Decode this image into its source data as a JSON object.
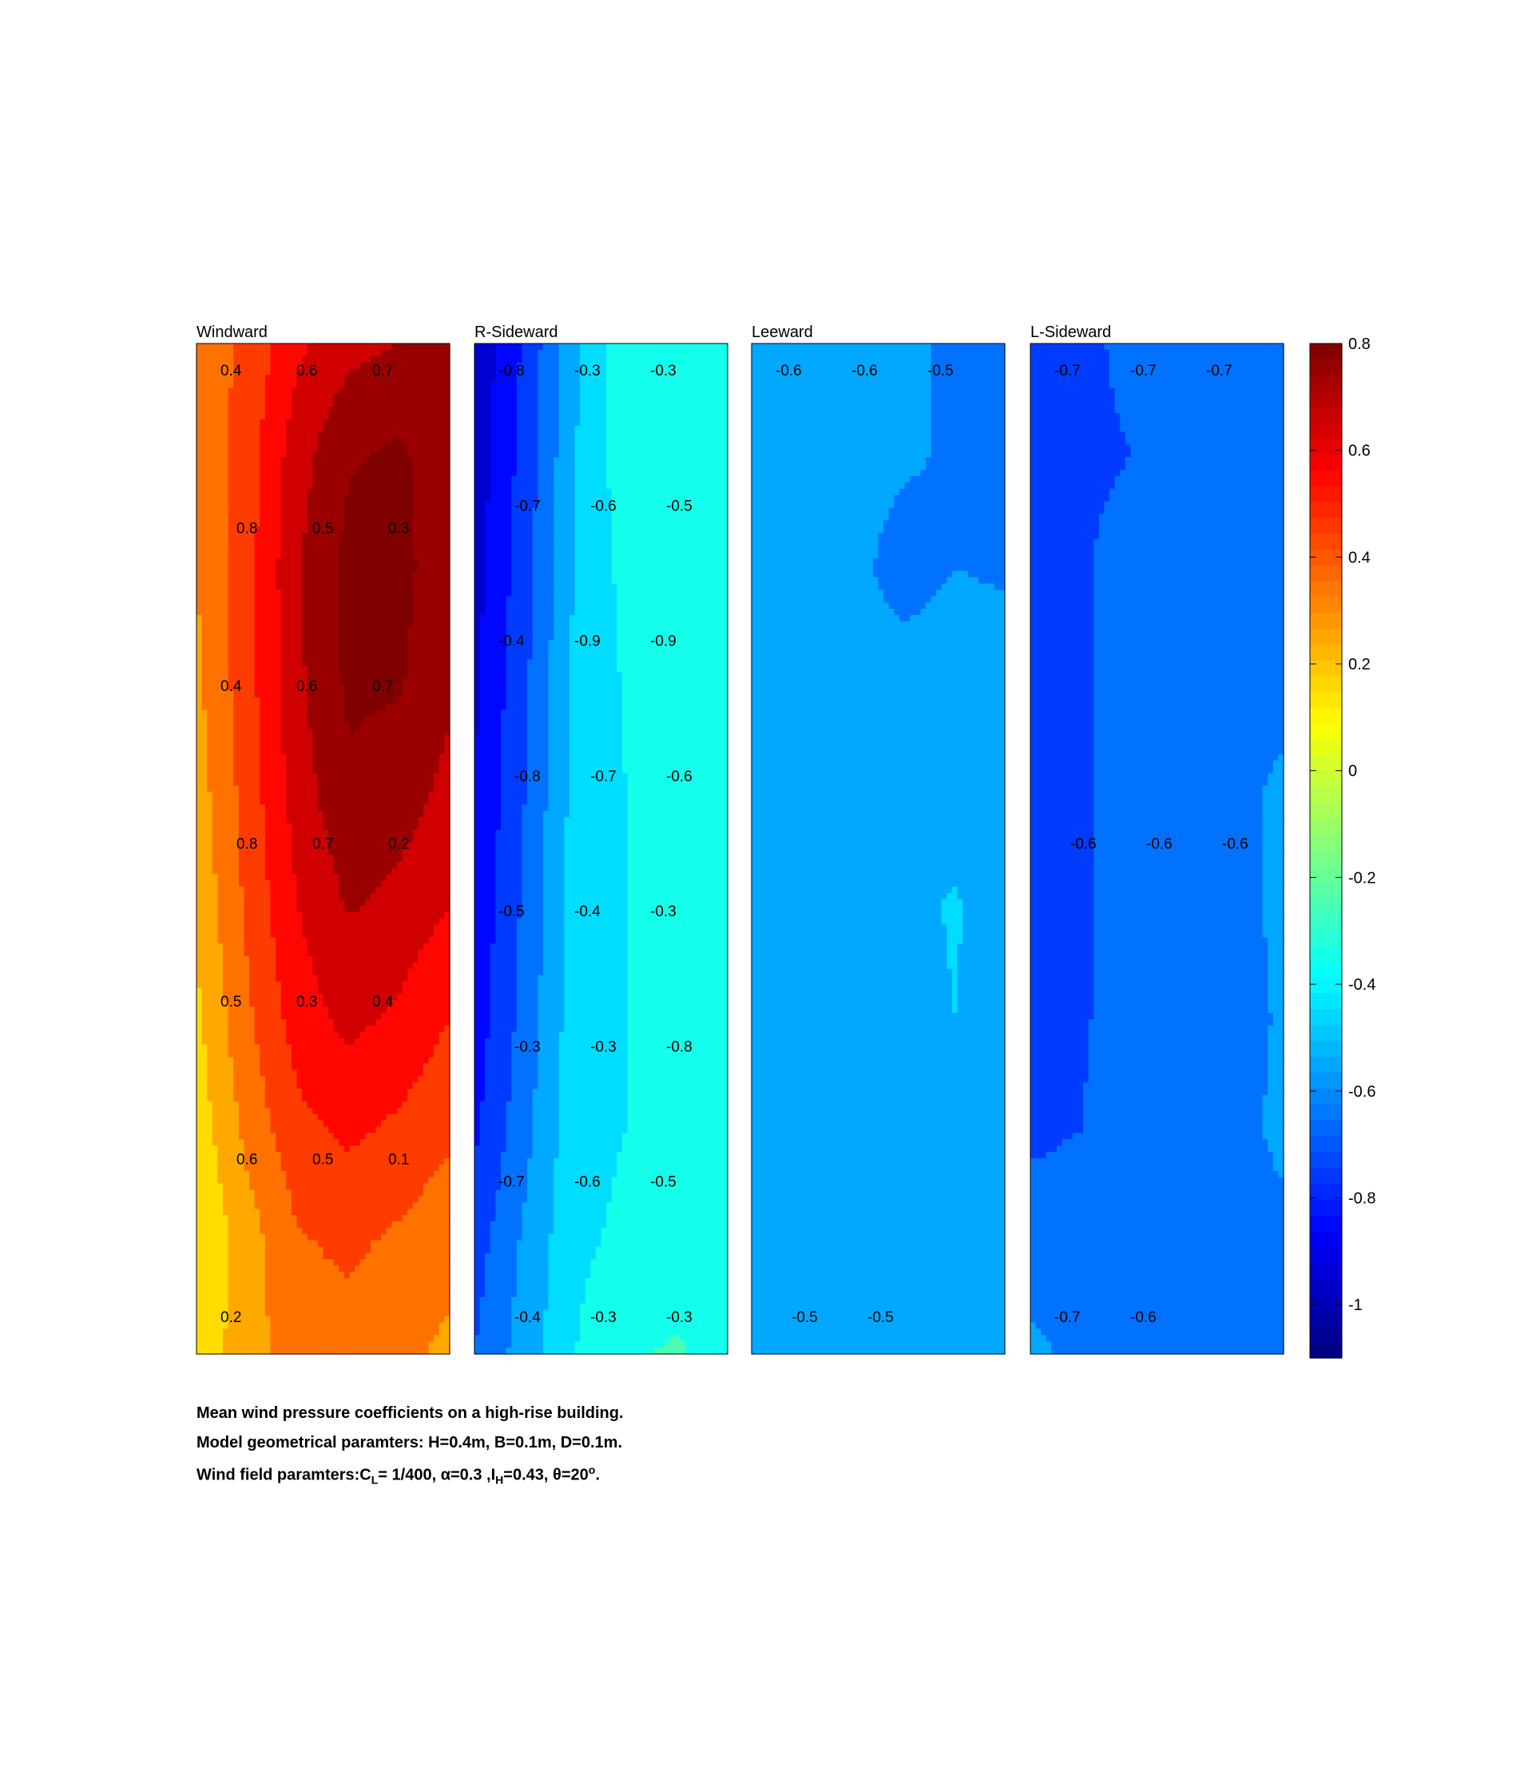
{
  "chart_data": {
    "type": "heatmap",
    "description_note": "",
    "panels": [
      {
        "title": "Windward",
        "contour_labels": [
          "0.4",
          "0.6",
          "0.7",
          "0.8",
          "0.5",
          "0.3",
          "0.4",
          "0.6",
          "0.7",
          "0.8",
          "0.7",
          "0.2",
          "0.5",
          "0.3",
          "0.4",
          "0.6",
          "0.5",
          "0.1",
          "0.2"
        ],
        "grid": [
          [
            0.34,
            0.42,
            0.58,
            0.67,
            0.7,
            0.72
          ],
          [
            0.32,
            0.45,
            0.66,
            0.79,
            0.82,
            0.73
          ],
          [
            0.3,
            0.46,
            0.69,
            0.83,
            0.83,
            0.74
          ],
          [
            0.28,
            0.46,
            0.68,
            0.82,
            0.81,
            0.72
          ],
          [
            0.25,
            0.44,
            0.65,
            0.78,
            0.75,
            0.67
          ],
          [
            0.22,
            0.42,
            0.6,
            0.71,
            0.67,
            0.6
          ],
          [
            0.18,
            0.38,
            0.55,
            0.63,
            0.58,
            0.5
          ],
          [
            0.14,
            0.33,
            0.47,
            0.52,
            0.48,
            0.42
          ],
          [
            0.1,
            0.25,
            0.39,
            0.42,
            0.38,
            0.33
          ],
          [
            0.13,
            0.26,
            0.35,
            0.36,
            0.32,
            0.28
          ]
        ]
      },
      {
        "title": "R-Sideward",
        "contour_labels": [
          "-0.8",
          "-0.3",
          "-0.3",
          "-0.7",
          "-0.6",
          "-0.5",
          "-0.4",
          "-0.9",
          "-0.9",
          "-0.8",
          "-0.7",
          "-0.6",
          "-0.5",
          "-0.4",
          "-0.3",
          "-0.3",
          "-0.3",
          "-0.8",
          "-0.7",
          "-0.6",
          "-0.5",
          "-0.4",
          "-0.3",
          "-0.3"
        ],
        "grid": [
          [
            -0.98,
            -0.78,
            -0.52,
            -0.33,
            -0.3,
            -0.32
          ],
          [
            -0.96,
            -0.76,
            -0.5,
            -0.34,
            -0.31,
            -0.33
          ],
          [
            -0.94,
            -0.74,
            -0.49,
            -0.37,
            -0.33,
            -0.36
          ],
          [
            -0.92,
            -0.72,
            -0.47,
            -0.39,
            -0.35,
            -0.38
          ],
          [
            -0.9,
            -0.7,
            -0.46,
            -0.4,
            -0.32,
            -0.39
          ],
          [
            -0.88,
            -0.68,
            -0.45,
            -0.4,
            -0.31,
            -0.39
          ],
          [
            -0.86,
            -0.66,
            -0.44,
            -0.4,
            -0.34,
            -0.39
          ],
          [
            -0.82,
            -0.63,
            -0.43,
            -0.4,
            -0.33,
            -0.39
          ],
          [
            -0.75,
            -0.58,
            -0.42,
            -0.38,
            -0.34,
            -0.38
          ],
          [
            -0.7,
            -0.55,
            -0.4,
            -0.31,
            -0.29,
            -0.34
          ]
        ]
      },
      {
        "title": "Leeward",
        "contour_labels": [
          "-0.6",
          "-0.6",
          "-0.5",
          "-0.5",
          "-0.5"
        ],
        "grid": [
          [
            -0.55,
            -0.55,
            -0.56,
            -0.58,
            -0.62,
            -0.63
          ],
          [
            -0.55,
            -0.56,
            -0.57,
            -0.59,
            -0.61,
            -0.63
          ],
          [
            -0.55,
            -0.56,
            -0.58,
            -0.63,
            -0.6,
            -0.61
          ],
          [
            -0.55,
            -0.56,
            -0.57,
            -0.57,
            -0.56,
            -0.56
          ],
          [
            -0.51,
            -0.52,
            -0.55,
            -0.56,
            -0.56,
            -0.56
          ],
          [
            -0.5,
            -0.51,
            -0.54,
            -0.53,
            -0.49,
            -0.55
          ],
          [
            -0.51,
            -0.53,
            -0.55,
            -0.55,
            -0.5,
            -0.55
          ],
          [
            -0.52,
            -0.54,
            -0.55,
            -0.56,
            -0.55,
            -0.56
          ],
          [
            -0.55,
            -0.55,
            -0.56,
            -0.56,
            -0.56,
            -0.56
          ],
          [
            -0.54,
            -0.55,
            -0.56,
            -0.56,
            -0.56,
            -0.56
          ]
        ]
      },
      {
        "title": "L-Sideward",
        "contour_labels": [
          "-0.7",
          "-0.7",
          "-0.7",
          "-0.6",
          "-0.6",
          "-0.6",
          "-0.7",
          "-0.6"
        ],
        "grid": [
          [
            -0.72,
            -0.72,
            -0.68,
            -0.67,
            -0.68,
            -0.7
          ],
          [
            -0.73,
            -0.72,
            -0.7,
            -0.66,
            -0.66,
            -0.66
          ],
          [
            -0.72,
            -0.71,
            -0.66,
            -0.65,
            -0.65,
            -0.65
          ],
          [
            -0.72,
            -0.71,
            -0.66,
            -0.65,
            -0.64,
            -0.63
          ],
          [
            -0.72,
            -0.71,
            -0.66,
            -0.65,
            -0.63,
            -0.58
          ],
          [
            -0.72,
            -0.71,
            -0.66,
            -0.65,
            -0.63,
            -0.58
          ],
          [
            -0.72,
            -0.71,
            -0.66,
            -0.65,
            -0.63,
            -0.59
          ],
          [
            -0.72,
            -0.7,
            -0.66,
            -0.65,
            -0.63,
            -0.58
          ],
          [
            -0.65,
            -0.65,
            -0.65,
            -0.65,
            -0.64,
            -0.62
          ],
          [
            -0.58,
            -0.62,
            -0.64,
            -0.65,
            -0.65,
            -0.65
          ]
        ]
      }
    ],
    "colorbar": {
      "colormap": "jet",
      "clim": [
        -1.1,
        0.8
      ],
      "ticks": [
        "0.8",
        "0.6",
        "0.4",
        "0.2",
        "0",
        "-0.2",
        "-0.4",
        "-0.6",
        "-0.8",
        "-1"
      ],
      "tick_values": [
        0.8,
        0.6,
        0.4,
        0.2,
        0,
        -0.2,
        -0.4,
        -0.6,
        -0.8,
        -1.0
      ]
    },
    "contour_levels": [
      -1.0,
      -0.9,
      -0.8,
      -0.7,
      -0.6,
      -0.5,
      -0.4,
      -0.3,
      -0.2,
      -0.1,
      0.0,
      0.1,
      0.2,
      0.3,
      0.4,
      0.5,
      0.6,
      0.7,
      0.8
    ],
    "grid_lines": false
  },
  "caption": {
    "line1": "Mean wind pressure coefficients on a high-rise building.",
    "line2": "Model geometrical paramters: H=0.4m, B=0.1m, D=0.1m.",
    "line3_prefix": "Wind field paramters:C",
    "line3_sub1": "L",
    "line3_mid1": "= 1/400, α=0.3 ,I",
    "line3_sub2": "H",
    "line3_mid2": "=0.43, θ=20",
    "line3_sup": "o",
    "line3_end": "."
  }
}
